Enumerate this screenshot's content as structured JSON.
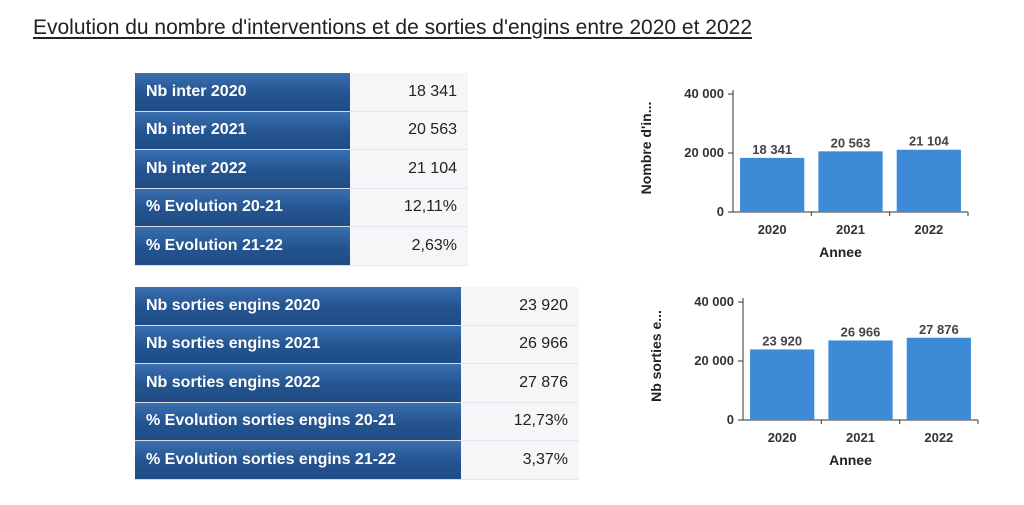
{
  "title": "Evolution du nombre d'interventions et de sorties d'engins entre 2020 et 2022",
  "table_interventions": [
    {
      "label": "Nb inter 2020",
      "value": "18 341"
    },
    {
      "label": "Nb inter 2021",
      "value": "20 563"
    },
    {
      "label": "Nb inter 2022",
      "value": "21 104"
    },
    {
      "label": "% Evolution 20-21",
      "value": "12,11%"
    },
    {
      "label": "% Evolution 21-22",
      "value": "2,63%"
    }
  ],
  "table_sorties": [
    {
      "label": "Nb sorties engins 2020",
      "value": "23 920"
    },
    {
      "label": "Nb sorties engins 2021",
      "value": "26 966"
    },
    {
      "label": "Nb sorties engins 2022",
      "value": "27 876"
    },
    {
      "label": "% Evolution sorties engins 20-21",
      "value": "12,73%"
    },
    {
      "label": "% Evolution sorties engins 21-22",
      "value": "3,37%"
    }
  ],
  "colors": {
    "bar": "#3d8ad6",
    "header": "#24548f"
  },
  "chart_data": [
    {
      "type": "bar",
      "categories": [
        "2020",
        "2021",
        "2022"
      ],
      "values": [
        18341,
        20563,
        21104
      ],
      "value_labels": [
        "18 341",
        "20 563",
        "21 104"
      ],
      "xlabel": "Annee",
      "ylabel": "Nombre d'in...",
      "ylim": [
        0,
        40000
      ],
      "yticks": [
        0,
        20000,
        40000
      ],
      "ytick_labels": [
        "0",
        "20 000",
        "40 000"
      ],
      "grid": false
    },
    {
      "type": "bar",
      "categories": [
        "2020",
        "2021",
        "2022"
      ],
      "values": [
        23920,
        26966,
        27876
      ],
      "value_labels": [
        "23 920",
        "26 966",
        "27 876"
      ],
      "xlabel": "Annee",
      "ylabel": "Nb sorties e...",
      "ylim": [
        0,
        40000
      ],
      "yticks": [
        0,
        20000,
        40000
      ],
      "ytick_labels": [
        "0",
        "20 000",
        "40 000"
      ],
      "grid": false
    }
  ]
}
